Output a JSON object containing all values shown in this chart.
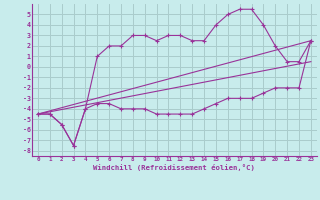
{
  "background_color": "#c8ecec",
  "grid_color": "#aacccc",
  "line_color": "#993399",
  "marker_color": "#993399",
  "xlim": [
    -0.5,
    23.5
  ],
  "ylim": [
    -8.5,
    6.0
  ],
  "xlabel": "Windchill (Refroidissement éolien,°C)",
  "xticks": [
    0,
    1,
    2,
    3,
    4,
    5,
    6,
    7,
    8,
    9,
    10,
    11,
    12,
    13,
    14,
    15,
    16,
    17,
    18,
    19,
    20,
    21,
    22,
    23
  ],
  "yticks": [
    -8,
    -7,
    -6,
    -5,
    -4,
    -3,
    -2,
    -1,
    0,
    1,
    2,
    3,
    4,
    5
  ],
  "series_zigzag_x": [
    0,
    1,
    2,
    3,
    4,
    5,
    6,
    7,
    8,
    9,
    10,
    11,
    12,
    13,
    14,
    15,
    16,
    17,
    18,
    19,
    20,
    21,
    22,
    23
  ],
  "series_zigzag_y": [
    -4.5,
    -4.5,
    -5.5,
    -7.5,
    -4.0,
    1.0,
    2.0,
    2.0,
    3.0,
    3.0,
    2.5,
    3.0,
    3.0,
    2.5,
    2.5,
    4.0,
    5.0,
    5.5,
    5.5,
    4.0,
    2.0,
    0.5,
    0.5,
    2.5
  ],
  "series_flat_x": [
    0,
    1,
    2,
    3,
    4,
    5,
    6,
    7,
    8,
    9,
    10,
    11,
    12,
    13,
    14,
    15,
    16,
    17,
    18,
    19,
    20,
    21,
    22,
    23
  ],
  "series_flat_y": [
    -4.5,
    -4.5,
    -5.5,
    -7.5,
    -4.0,
    -3.5,
    -3.5,
    -4.0,
    -4.0,
    -4.0,
    -4.5,
    -4.5,
    -4.5,
    -4.5,
    -4.0,
    -3.5,
    -3.0,
    -3.0,
    -3.0,
    -2.5,
    -2.0,
    -2.0,
    -2.0,
    2.5
  ],
  "series_line1_x": [
    0,
    23
  ],
  "series_line1_y": [
    -4.5,
    2.5
  ],
  "series_line2_x": [
    0,
    23
  ],
  "series_line2_y": [
    -4.5,
    0.5
  ]
}
